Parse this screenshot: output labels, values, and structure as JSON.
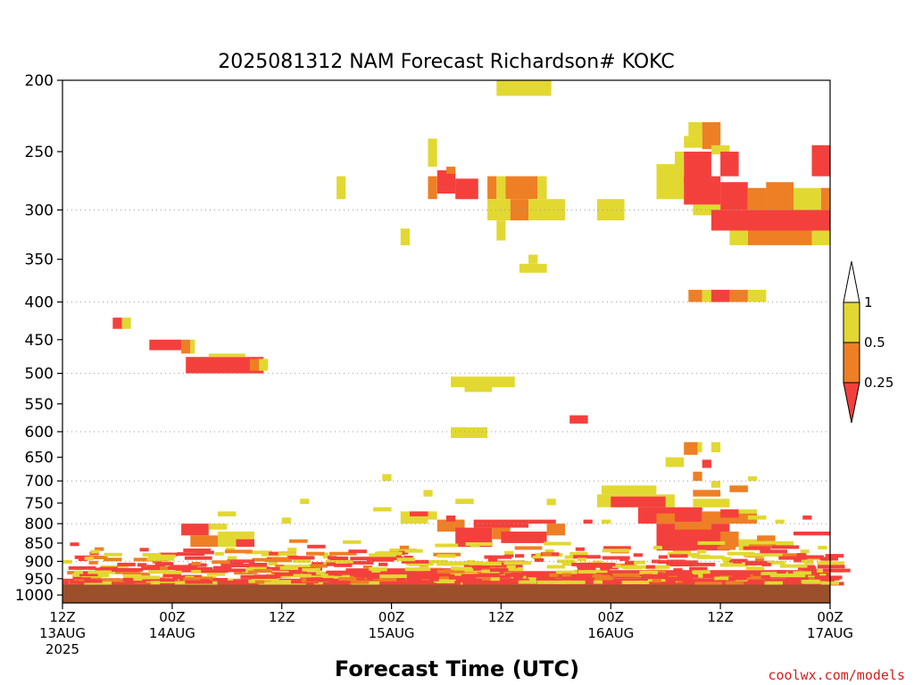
{
  "chart_data": {
    "type": "heatmap",
    "title": "2025081312 NAM Forecast Richardson# KOKC",
    "xlabel": "Forecast Time (UTC)",
    "ylabel": "",
    "credit": "coolwx.com/models",
    "x_range_hours": [
      0,
      84
    ],
    "y_range_hpa": [
      1025,
      200
    ],
    "y_scale": "log-pressure",
    "gridlines_hpa": [
      300,
      400,
      500,
      600,
      700,
      800,
      900,
      1000
    ],
    "y_ticks": [
      "200",
      "250",
      "300",
      "350",
      "400",
      "450",
      "500",
      "550",
      "600",
      "650",
      "700",
      "750",
      "800",
      "850",
      "900",
      "950",
      "1000"
    ],
    "x_ticks": [
      {
        "h": 0,
        "line1": "12Z",
        "line2": "13AUG",
        "line3": "2025"
      },
      {
        "h": 12,
        "line1": "00Z",
        "line2": "14AUG",
        "line3": ""
      },
      {
        "h": 24,
        "line1": "12Z",
        "line2": "",
        "line3": ""
      },
      {
        "h": 36,
        "line1": "00Z",
        "line2": "15AUG",
        "line3": ""
      },
      {
        "h": 48,
        "line1": "12Z",
        "line2": "",
        "line3": ""
      },
      {
        "h": 60,
        "line1": "00Z",
        "line2": "16AUG",
        "line3": ""
      },
      {
        "h": 72,
        "line1": "12Z",
        "line2": "",
        "line3": ""
      },
      {
        "h": 84,
        "line1": "00Z",
        "line2": "17AUG",
        "line3": ""
      }
    ],
    "colorbar": {
      "labels": [
        "1",
        "0.5",
        "0.25"
      ],
      "bins": [
        {
          "range": "> 1",
          "color": "#ffffff"
        },
        {
          "range": "0.5-1",
          "color": "#e2d832"
        },
        {
          "range": "0.25-0.5",
          "color": "#ee7f24"
        },
        {
          "range": "< 0.25",
          "color": "#f4403c"
        }
      ]
    },
    "colors": {
      "low": "#f4403c",
      "mid": "#ee7f24",
      "high": "#e2d832",
      "ground": "#9b4f2a"
    },
    "ground_level_hpa": 968,
    "cells": [
      {
        "h0": 47.5,
        "h1": 53.5,
        "p0": 200,
        "p1": 210,
        "c": "high"
      },
      {
        "h0": 68.5,
        "h1": 70,
        "p0": 228,
        "p1": 238,
        "c": "high"
      },
      {
        "h0": 70,
        "h1": 72,
        "p0": 228,
        "p1": 248,
        "c": "mid"
      },
      {
        "h0": 68,
        "h1": 70,
        "p0": 238,
        "p1": 247,
        "c": "high"
      },
      {
        "h0": 71,
        "h1": 73,
        "p0": 245,
        "p1": 252,
        "c": "high"
      },
      {
        "h0": 67,
        "h1": 68,
        "p0": 250,
        "p1": 270,
        "c": "high"
      },
      {
        "h0": 68,
        "h1": 71,
        "p0": 250,
        "p1": 275,
        "c": "low"
      },
      {
        "h0": 72,
        "h1": 74,
        "p0": 250,
        "p1": 270,
        "c": "low"
      },
      {
        "h0": 65,
        "h1": 68,
        "p0": 260,
        "p1": 290,
        "c": "high"
      },
      {
        "h0": 68,
        "h1": 72,
        "p0": 270,
        "p1": 295,
        "c": "low"
      },
      {
        "h0": 72,
        "h1": 75,
        "p0": 275,
        "p1": 300,
        "c": "low"
      },
      {
        "h0": 75,
        "h1": 77,
        "p0": 280,
        "p1": 300,
        "c": "mid"
      },
      {
        "h0": 77,
        "h1": 80,
        "p0": 275,
        "p1": 300,
        "c": "mid"
      },
      {
        "h0": 82,
        "h1": 84,
        "p0": 245,
        "p1": 270,
        "c": "low"
      },
      {
        "h0": 80,
        "h1": 83,
        "p0": 280,
        "p1": 300,
        "c": "high"
      },
      {
        "h0": 83,
        "h1": 84,
        "p0": 280,
        "p1": 300,
        "c": "mid"
      },
      {
        "h0": 69,
        "h1": 72,
        "p0": 295,
        "p1": 305,
        "c": "high"
      },
      {
        "h0": 71,
        "h1": 84,
        "p0": 300,
        "p1": 320,
        "c": "low"
      },
      {
        "h0": 75,
        "h1": 82,
        "p0": 320,
        "p1": 335,
        "c": "mid"
      },
      {
        "h0": 73,
        "h1": 75,
        "p0": 320,
        "p1": 335,
        "c": "high"
      },
      {
        "h0": 82,
        "h1": 84,
        "p0": 320,
        "p1": 335,
        "c": "high"
      },
      {
        "h0": 40,
        "h1": 41,
        "p0": 240,
        "p1": 262,
        "c": "high"
      },
      {
        "h0": 41,
        "h1": 43,
        "p0": 265,
        "p1": 285,
        "c": "low"
      },
      {
        "h0": 40,
        "h1": 41,
        "p0": 270,
        "p1": 290,
        "c": "mid"
      },
      {
        "h0": 43,
        "h1": 45.5,
        "p0": 272,
        "p1": 290,
        "c": "low"
      },
      {
        "h0": 42,
        "h1": 43,
        "p0": 262,
        "p1": 268,
        "c": "mid"
      },
      {
        "h0": 30,
        "h1": 31,
        "p0": 270,
        "p1": 290,
        "c": "high"
      },
      {
        "h0": 46.5,
        "h1": 47.5,
        "p0": 270,
        "p1": 290,
        "c": "mid"
      },
      {
        "h0": 47.5,
        "h1": 48.5,
        "p0": 270,
        "p1": 290,
        "c": "high"
      },
      {
        "h0": 48.5,
        "h1": 52,
        "p0": 270,
        "p1": 290,
        "c": "mid"
      },
      {
        "h0": 52,
        "h1": 53,
        "p0": 270,
        "p1": 290,
        "c": "high"
      },
      {
        "h0": 49,
        "h1": 51,
        "p0": 290,
        "p1": 310,
        "c": "mid"
      },
      {
        "h0": 46.5,
        "h1": 49,
        "p0": 290,
        "p1": 310,
        "c": "high"
      },
      {
        "h0": 51,
        "h1": 55,
        "p0": 290,
        "p1": 310,
        "c": "high"
      },
      {
        "h0": 58.5,
        "h1": 61.5,
        "p0": 290,
        "p1": 310,
        "c": "high"
      },
      {
        "h0": 47.5,
        "h1": 48.5,
        "p0": 310,
        "p1": 330,
        "c": "high"
      },
      {
        "h0": 37,
        "h1": 38,
        "p0": 318,
        "p1": 335,
        "c": "high"
      },
      {
        "h0": 50,
        "h1": 53,
        "p0": 355,
        "p1": 365,
        "c": "high"
      },
      {
        "h0": 51,
        "h1": 52,
        "p0": 345,
        "p1": 355,
        "c": "high"
      },
      {
        "h0": 68.5,
        "h1": 70,
        "p0": 385,
        "p1": 400,
        "c": "mid"
      },
      {
        "h0": 70,
        "h1": 72,
        "p0": 385,
        "p1": 400,
        "c": "high"
      },
      {
        "h0": 71,
        "h1": 73,
        "p0": 385,
        "p1": 400,
        "c": "low"
      },
      {
        "h0": 73,
        "h1": 75,
        "p0": 385,
        "p1": 400,
        "c": "mid"
      },
      {
        "h0": 75,
        "h1": 77,
        "p0": 385,
        "p1": 400,
        "c": "high"
      },
      {
        "h0": 5.5,
        "h1": 6.5,
        "p0": 420,
        "p1": 435,
        "c": "low"
      },
      {
        "h0": 6.5,
        "h1": 7.5,
        "p0": 420,
        "p1": 435,
        "c": "high"
      },
      {
        "h0": 9.5,
        "h1": 13,
        "p0": 450,
        "p1": 465,
        "c": "low"
      },
      {
        "h0": 13,
        "h1": 14,
        "p0": 450,
        "p1": 470,
        "c": "mid"
      },
      {
        "h0": 14,
        "h1": 14.5,
        "p0": 450,
        "p1": 470,
        "c": "high"
      },
      {
        "h0": 13.5,
        "h1": 22,
        "p0": 475,
        "p1": 500,
        "c": "low"
      },
      {
        "h0": 16,
        "h1": 20,
        "p0": 470,
        "p1": 475,
        "c": "high"
      },
      {
        "h0": 20.5,
        "h1": 21.5,
        "p0": 478,
        "p1": 496,
        "c": "mid"
      },
      {
        "h0": 21.5,
        "h1": 22.5,
        "p0": 478,
        "p1": 496,
        "c": "high"
      },
      {
        "h0": 42.5,
        "h1": 49.5,
        "p0": 505,
        "p1": 522,
        "c": "high"
      },
      {
        "h0": 44,
        "h1": 47,
        "p0": 522,
        "p1": 530,
        "c": "high"
      },
      {
        "h0": 55.5,
        "h1": 57.5,
        "p0": 570,
        "p1": 585,
        "c": "low"
      },
      {
        "h0": 42.5,
        "h1": 46.5,
        "p0": 592,
        "p1": 612,
        "c": "high"
      },
      {
        "h0": 68,
        "h1": 69.5,
        "p0": 620,
        "p1": 645,
        "c": "mid"
      },
      {
        "h0": 69.5,
        "h1": 70,
        "p0": 620,
        "p1": 640,
        "c": "high"
      },
      {
        "h0": 71,
        "h1": 72,
        "p0": 620,
        "p1": 640,
        "c": "high"
      },
      {
        "h0": 66,
        "h1": 68,
        "p0": 650,
        "p1": 670,
        "c": "high"
      },
      {
        "h0": 70,
        "h1": 71,
        "p0": 655,
        "p1": 672,
        "c": "low"
      },
      {
        "h0": 69,
        "h1": 70,
        "p0": 680,
        "p1": 700,
        "c": "mid"
      },
      {
        "h0": 35,
        "h1": 36,
        "p0": 685,
        "p1": 700,
        "c": "high"
      },
      {
        "h0": 59,
        "h1": 65,
        "p0": 710,
        "p1": 730,
        "c": "high"
      },
      {
        "h0": 58.5,
        "h1": 67,
        "p0": 730,
        "p1": 760,
        "c": "high"
      },
      {
        "h0": 60,
        "h1": 66,
        "p0": 735,
        "p1": 760,
        "c": "low"
      },
      {
        "h0": 63,
        "h1": 70,
        "p0": 760,
        "p1": 800,
        "c": "low"
      },
      {
        "h0": 65,
        "h1": 67,
        "p0": 775,
        "p1": 800,
        "c": "mid"
      },
      {
        "h0": 69,
        "h1": 73,
        "p0": 740,
        "p1": 760,
        "c": "high"
      },
      {
        "h0": 69,
        "h1": 72,
        "p0": 720,
        "p1": 735,
        "c": "mid"
      },
      {
        "h0": 71,
        "h1": 72,
        "p0": 700,
        "p1": 715,
        "c": "high"
      },
      {
        "h0": 73,
        "h1": 75,
        "p0": 710,
        "p1": 725,
        "c": "mid"
      },
      {
        "h0": 75,
        "h1": 76,
        "p0": 690,
        "p1": 700,
        "c": "high"
      },
      {
        "h0": 70,
        "h1": 76,
        "p0": 770,
        "p1": 800,
        "c": "mid"
      },
      {
        "h0": 72,
        "h1": 74,
        "p0": 765,
        "p1": 785,
        "c": "low"
      },
      {
        "h0": 74,
        "h1": 76,
        "p0": 765,
        "p1": 775,
        "c": "high"
      },
      {
        "h0": 65,
        "h1": 73,
        "p0": 800,
        "p1": 870,
        "c": "low"
      },
      {
        "h0": 67,
        "h1": 71,
        "p0": 795,
        "p1": 815,
        "c": "mid"
      },
      {
        "h0": 72,
        "h1": 74,
        "p0": 820,
        "p1": 860,
        "c": "mid"
      },
      {
        "h0": 74,
        "h1": 77,
        "p0": 840,
        "p1": 870,
        "c": "high"
      },
      {
        "h0": 34,
        "h1": 36,
        "p0": 760,
        "p1": 770,
        "c": "high"
      },
      {
        "h0": 37,
        "h1": 40,
        "p0": 770,
        "p1": 800,
        "c": "high"
      },
      {
        "h0": 38,
        "h1": 40,
        "p0": 770,
        "p1": 782,
        "c": "low"
      },
      {
        "h0": 40,
        "h1": 41,
        "p0": 770,
        "p1": 790,
        "c": "high"
      },
      {
        "h0": 41,
        "h1": 44,
        "p0": 790,
        "p1": 820,
        "c": "mid"
      },
      {
        "h0": 42,
        "h1": 43,
        "p0": 780,
        "p1": 795,
        "c": "low"
      },
      {
        "h0": 43,
        "h1": 47,
        "p0": 810,
        "p1": 860,
        "c": "low"
      },
      {
        "h0": 47,
        "h1": 49,
        "p0": 800,
        "p1": 840,
        "c": "mid"
      },
      {
        "h0": 45,
        "h1": 51,
        "p0": 790,
        "p1": 810,
        "c": "low"
      },
      {
        "h0": 48,
        "h1": 53,
        "p0": 820,
        "p1": 850,
        "c": "low"
      },
      {
        "h0": 53,
        "h1": 55,
        "p0": 800,
        "p1": 830,
        "c": "mid"
      },
      {
        "h0": 51,
        "h1": 54,
        "p0": 790,
        "p1": 800,
        "c": "low"
      },
      {
        "h0": 43,
        "h1": 45,
        "p0": 740,
        "p1": 752,
        "c": "high"
      },
      {
        "h0": 53,
        "h1": 54,
        "p0": 740,
        "p1": 755,
        "c": "high"
      },
      {
        "h0": 39.5,
        "h1": 40.5,
        "p0": 720,
        "p1": 735,
        "c": "high"
      },
      {
        "h0": 57,
        "h1": 58,
        "p0": 790,
        "p1": 800,
        "c": "low"
      },
      {
        "h0": 59,
        "h1": 60,
        "p0": 790,
        "p1": 800,
        "c": "high"
      },
      {
        "h0": 81,
        "h1": 82,
        "p0": 780,
        "p1": 790,
        "c": "low"
      },
      {
        "h0": 24,
        "h1": 25,
        "p0": 785,
        "p1": 800,
        "c": "high"
      },
      {
        "h0": 26,
        "h1": 27,
        "p0": 740,
        "p1": 752,
        "c": "high"
      },
      {
        "h0": 17,
        "h1": 19,
        "p0": 770,
        "p1": 782,
        "c": "high"
      },
      {
        "h0": 13,
        "h1": 16,
        "p0": 800,
        "p1": 830,
        "c": "low"
      },
      {
        "h0": 16,
        "h1": 18,
        "p0": 800,
        "p1": 815,
        "c": "high"
      },
      {
        "h0": 17,
        "h1": 21,
        "p0": 820,
        "p1": 860,
        "c": "high"
      },
      {
        "h0": 14,
        "h1": 17,
        "p0": 830,
        "p1": 860,
        "c": "mid"
      },
      {
        "h0": 19,
        "h1": 21,
        "p0": 840,
        "p1": 860,
        "c": "low"
      },
      {
        "h0": 80,
        "h1": 84,
        "p0": 820,
        "p1": 830,
        "c": "low"
      },
      {
        "h0": 75,
        "h1": 80,
        "p0": 845,
        "p1": 860,
        "c": "high"
      },
      {
        "h0": 76,
        "h1": 78,
        "p0": 830,
        "p1": 845,
        "c": "mid"
      },
      {
        "h0": 75,
        "h1": 77,
        "p0": 780,
        "p1": 790,
        "c": "high"
      },
      {
        "h0": 78,
        "h1": 79,
        "p0": 790,
        "p1": 800,
        "c": "high"
      },
      {
        "h0": 0,
        "h1": 84,
        "p0": 950,
        "p1": 968,
        "c": "low"
      },
      {
        "h0": 26,
        "h1": 84,
        "p0": 935,
        "p1": 950,
        "c": "low"
      },
      {
        "h0": 31,
        "h1": 48,
        "p0": 920,
        "p1": 935,
        "c": "low"
      },
      {
        "h0": 48,
        "h1": 56,
        "p0": 928,
        "p1": 945,
        "c": "low"
      },
      {
        "h0": 56,
        "h1": 84,
        "p0": 925,
        "p1": 940,
        "c": "low"
      }
    ],
    "scatter_seed": 20250813,
    "scatter_pmin": 840,
    "scatter_pmax": 960
  }
}
